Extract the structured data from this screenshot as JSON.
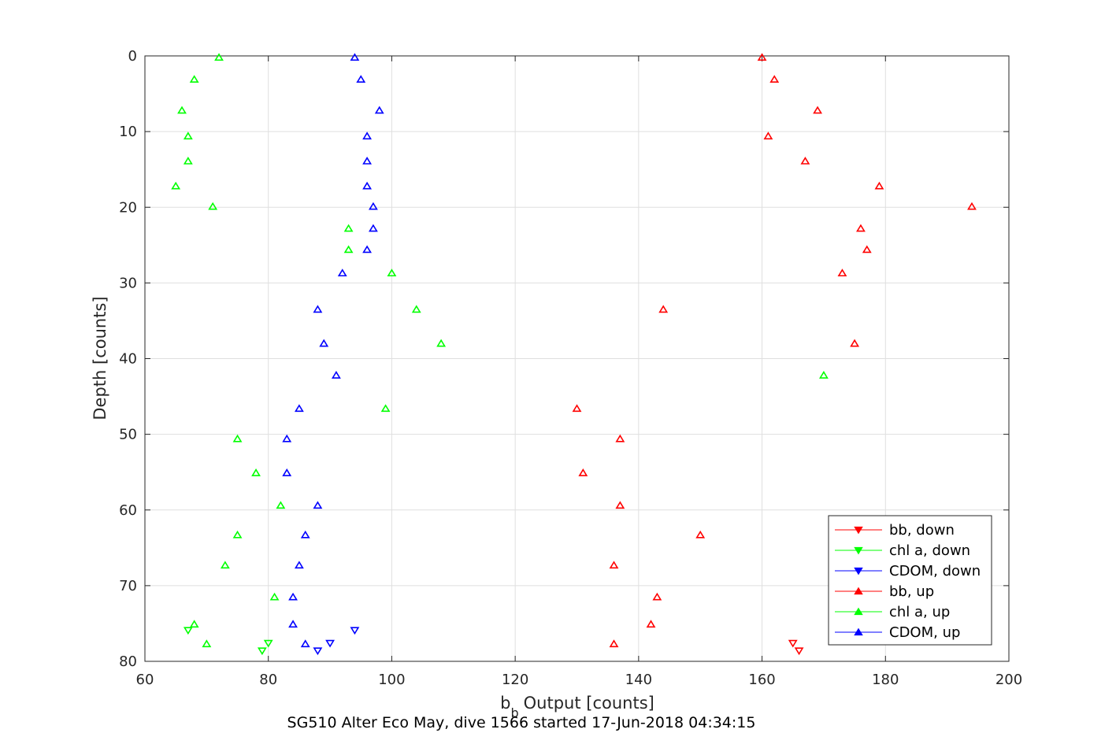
{
  "chart_data": {
    "type": "scatter",
    "caption": "SG510 Alter Eco May, dive 1566 started 17-Jun-2018 04:34:15",
    "xlabel": "Output [counts]",
    "xlabel_prefix": "b",
    "xlabel_subscript": "b",
    "ylabel": "Depth [counts]",
    "xlim": [
      60,
      200
    ],
    "ylim": [
      0,
      80
    ],
    "y_reversed": true,
    "grid": true,
    "legend_position": "bottom-right",
    "x_ticks": [
      "60",
      "80",
      "100",
      "120",
      "140",
      "160",
      "180",
      "200"
    ],
    "y_ticks": [
      "0",
      "10",
      "20",
      "30",
      "40",
      "50",
      "60",
      "70",
      "80"
    ],
    "series": [
      {
        "name": "bb, down",
        "color": "#ff0000",
        "marker": "triangle-down",
        "points": [
          [
            165,
            77.6
          ],
          [
            166,
            78.6
          ]
        ]
      },
      {
        "name": "chl a, down",
        "color": "#00ff00",
        "marker": "triangle-down",
        "points": [
          [
            67,
            75.9
          ],
          [
            80,
            77.6
          ],
          [
            79,
            78.6
          ]
        ]
      },
      {
        "name": "CDOM, down",
        "color": "#0000ff",
        "marker": "triangle-down",
        "points": [
          [
            94,
            75.9
          ],
          [
            90,
            77.6
          ],
          [
            88,
            78.6
          ]
        ]
      },
      {
        "name": "bb, up",
        "color": "#ff0000",
        "marker": "triangle-up",
        "points": [
          [
            160,
            0.2
          ],
          [
            162,
            3.1
          ],
          [
            169,
            7.2
          ],
          [
            161,
            10.6
          ],
          [
            167,
            13.9
          ],
          [
            179,
            17.2
          ],
          [
            194,
            19.9
          ],
          [
            176,
            22.8
          ],
          [
            177,
            25.6
          ],
          [
            173,
            28.7
          ],
          [
            144,
            33.5
          ],
          [
            175,
            38
          ],
          [
            130,
            46.6
          ],
          [
            137,
            50.6
          ],
          [
            131,
            55.1
          ],
          [
            137,
            59.4
          ],
          [
            150,
            63.3
          ],
          [
            136,
            67.3
          ],
          [
            143,
            71.5
          ],
          [
            142,
            75.1
          ],
          [
            136,
            77.7
          ]
        ]
      },
      {
        "name": "chl a, up",
        "color": "#00ff00",
        "marker": "triangle-up",
        "points": [
          [
            72,
            0.2
          ],
          [
            68,
            3.1
          ],
          [
            66,
            7.2
          ],
          [
            67,
            10.6
          ],
          [
            67,
            13.9
          ],
          [
            65,
            17.2
          ],
          [
            71,
            19.9
          ],
          [
            93,
            22.8
          ],
          [
            93,
            25.6
          ],
          [
            100,
            28.7
          ],
          [
            104,
            33.5
          ],
          [
            108,
            38
          ],
          [
            170,
            42.2
          ],
          [
            99,
            46.6
          ],
          [
            75,
            50.6
          ],
          [
            78,
            55.1
          ],
          [
            82,
            59.4
          ],
          [
            75,
            63.3
          ],
          [
            73,
            67.3
          ],
          [
            81,
            71.5
          ],
          [
            68,
            75.1
          ],
          [
            70,
            77.7
          ]
        ]
      },
      {
        "name": "CDOM, up",
        "color": "#0000ff",
        "marker": "triangle-up",
        "points": [
          [
            94,
            0.2
          ],
          [
            95,
            3.1
          ],
          [
            98,
            7.2
          ],
          [
            96,
            10.6
          ],
          [
            96,
            13.9
          ],
          [
            96,
            17.2
          ],
          [
            97,
            19.9
          ],
          [
            97,
            22.8
          ],
          [
            96,
            25.6
          ],
          [
            92,
            28.7
          ],
          [
            88,
            33.5
          ],
          [
            89,
            38
          ],
          [
            91,
            42.2
          ],
          [
            85,
            46.6
          ],
          [
            83,
            50.6
          ],
          [
            83,
            55.1
          ],
          [
            88,
            59.4
          ],
          [
            86,
            63.3
          ],
          [
            85,
            67.3
          ],
          [
            84,
            71.5
          ],
          [
            84,
            75.1
          ],
          [
            86,
            77.7
          ]
        ]
      }
    ]
  }
}
